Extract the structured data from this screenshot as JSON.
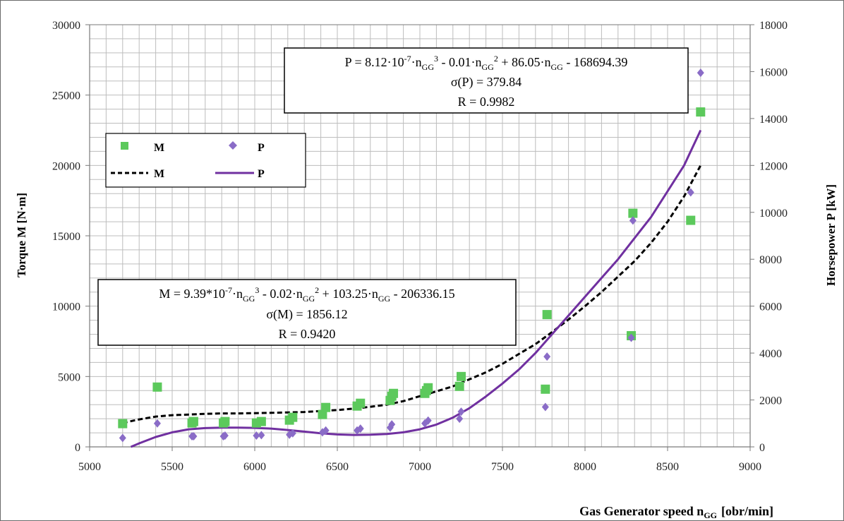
{
  "chart_data": {
    "type": "scatter",
    "xlabel": "Gas Generator speed n",
    "xlabel_sub": "GG",
    "xlabel_unit": "[obr/min]",
    "ylabel_left": "Torque M [N·m]",
    "ylabel_right": "Horsepower P [kW]",
    "xlim": [
      5000,
      9000
    ],
    "ylim_left": [
      0,
      30000
    ],
    "ylim_right": [
      0,
      18000
    ],
    "x_ticks": [
      5000,
      5500,
      6000,
      6500,
      7000,
      7500,
      8000,
      8500,
      9000
    ],
    "y_left_ticks": [
      0,
      5000,
      10000,
      15000,
      20000,
      25000,
      30000
    ],
    "y_right_ticks": [
      0,
      2000,
      4000,
      6000,
      8000,
      10000,
      12000,
      14000,
      16000,
      18000
    ],
    "grid": true,
    "colors": {
      "M": "#5cc95c",
      "P": "#8a6cc7",
      "M_fit": "#000000",
      "P_fit": "#7030a0"
    },
    "legend": {
      "placement": "upper-left",
      "entries": [
        {
          "label": "M",
          "style": "green-square"
        },
        {
          "label": "P",
          "style": "purple-diamond"
        },
        {
          "label": "M",
          "style": "black-dashed"
        },
        {
          "label": "P",
          "style": "purple-line"
        }
      ]
    },
    "series": [
      {
        "name": "M",
        "axis": "left",
        "kind": "points",
        "x": [
          5200,
          5410,
          5620,
          5630,
          5810,
          5820,
          6010,
          6040,
          6210,
          6230,
          6410,
          6430,
          6620,
          6640,
          6820,
          6830,
          6840,
          7030,
          7040,
          7050,
          7240,
          7250,
          7760,
          7770,
          8280,
          8290,
          8640,
          8700
        ],
        "y": [
          1650,
          4250,
          1700,
          1800,
          1700,
          1800,
          1700,
          1800,
          1900,
          2100,
          2300,
          2800,
          2900,
          3100,
          3300,
          3600,
          3800,
          3800,
          4000,
          4200,
          4300,
          5000,
          4100,
          9400,
          7900,
          16600,
          16100,
          23800
        ]
      },
      {
        "name": "P",
        "axis": "right",
        "kind": "points",
        "x": [
          5200,
          5410,
          5620,
          5630,
          5810,
          5820,
          6010,
          6040,
          6210,
          6230,
          6410,
          6430,
          6620,
          6640,
          6820,
          6830,
          7030,
          7050,
          7240,
          7250,
          7760,
          7770,
          8280,
          8290,
          8640,
          8700
        ],
        "y": [
          380,
          1000,
          450,
          450,
          450,
          480,
          480,
          500,
          520,
          580,
          620,
          700,
          700,
          780,
          820,
          960,
          1000,
          1120,
          1200,
          1500,
          1700,
          3850,
          4650,
          9650,
          10850,
          15950
        ]
      },
      {
        "name": "M",
        "axis": "left",
        "kind": "fit",
        "style": "dashed",
        "x": [
          5200,
          5300,
          5400,
          5500,
          5600,
          5700,
          5800,
          5900,
          6000,
          6100,
          6200,
          6300,
          6400,
          6500,
          6600,
          6700,
          6800,
          6900,
          7000,
          7100,
          7200,
          7300,
          7400,
          7500,
          7600,
          7700,
          7800,
          7900,
          8000,
          8100,
          8200,
          8300,
          8400,
          8500,
          8600,
          8700
        ],
        "y": [
          1700,
          1950,
          2150,
          2250,
          2300,
          2350,
          2380,
          2380,
          2400,
          2420,
          2450,
          2480,
          2550,
          2620,
          2720,
          2850,
          3000,
          3250,
          3600,
          3950,
          4300,
          4800,
          5300,
          5900,
          6600,
          7300,
          8150,
          9050,
          10000,
          11000,
          12100,
          13200,
          14500,
          16000,
          17800,
          20000
        ]
      },
      {
        "name": "P",
        "axis": "right",
        "kind": "fit",
        "style": "solid",
        "x": [
          5250,
          5300,
          5400,
          5500,
          5600,
          5700,
          5800,
          5900,
          6000,
          6100,
          6200,
          6300,
          6400,
          6500,
          6600,
          6700,
          6800,
          6900,
          7000,
          7100,
          7200,
          7300,
          7400,
          7500,
          7600,
          7700,
          7800,
          7900,
          8000,
          8100,
          8200,
          8300,
          8400,
          8500,
          8600,
          8700
        ],
        "y": [
          0,
          150,
          420,
          620,
          750,
          800,
          820,
          820,
          810,
          780,
          720,
          650,
          580,
          530,
          510,
          520,
          550,
          620,
          750,
          950,
          1250,
          1650,
          2150,
          2700,
          3300,
          4000,
          4800,
          5600,
          6400,
          7200,
          8000,
          8900,
          9800,
          10900,
          12000,
          13500
        ]
      }
    ],
    "annotations": [
      {
        "id": "p-equation",
        "lines": [
          [
            {
              "t": "P = 8.12·10"
            },
            {
              "t": "-7",
              "s": "sup"
            },
            {
              "t": "·n"
            },
            {
              "t": "GG",
              "s": "sub"
            },
            {
              "t": "3",
              "s": "sup"
            },
            {
              "t": " - 0.01·n"
            },
            {
              "t": "GG",
              "s": "sub"
            },
            {
              "t": "2",
              "s": "sup"
            },
            {
              "t": " + 86.05·n"
            },
            {
              "t": "GG",
              "s": "sub"
            },
            {
              "t": " - 168694.39"
            }
          ],
          [
            {
              "t": "σ(P) = 379.84"
            }
          ],
          [
            {
              "t": "R = 0.9982"
            }
          ]
        ]
      },
      {
        "id": "m-equation",
        "lines": [
          [
            {
              "t": "M = 9.39*10"
            },
            {
              "t": "-7",
              "s": "sup"
            },
            {
              "t": "·n"
            },
            {
              "t": "GG",
              "s": "sub"
            },
            {
              "t": "3",
              "s": "sup"
            },
            {
              "t": " - 0.02·n"
            },
            {
              "t": "GG",
              "s": "sub"
            },
            {
              "t": "2",
              "s": "sup"
            },
            {
              "t": " + 103.25·n"
            },
            {
              "t": "GG",
              "s": "sub"
            },
            {
              "t": " - 206336.15"
            }
          ],
          [
            {
              "t": "σ(M) = 1856.12"
            }
          ],
          [
            {
              "t": "R = 0.9420"
            }
          ]
        ]
      }
    ]
  }
}
